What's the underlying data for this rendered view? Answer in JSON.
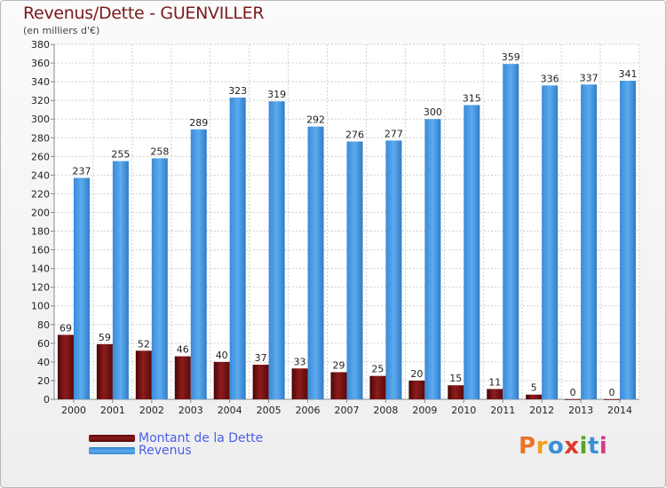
{
  "header": {
    "title": "Revenus/Dette - GUENVILLER",
    "subtitle": "(en milliers d'€)"
  },
  "brand": {
    "text": "Proxiti",
    "colors": [
      "#e8742a",
      "#f0a020",
      "#3c8fd6",
      "#e03a2c",
      "#5aa02c",
      "#3c8fd6",
      "#d23a8c"
    ]
  },
  "chart_data": {
    "type": "bar",
    "categories": [
      "2000",
      "2001",
      "2002",
      "2003",
      "2004",
      "2005",
      "2006",
      "2007",
      "2008",
      "2009",
      "2010",
      "2011",
      "2012",
      "2013",
      "2014"
    ],
    "series": [
      {
        "name": "Montant de la Dette",
        "color": "#7a1010",
        "values": [
          69,
          59,
          52,
          46,
          40,
          37,
          33,
          29,
          25,
          20,
          15,
          11,
          5,
          0,
          0
        ]
      },
      {
        "name": "Revenus",
        "color": "#3d95e0",
        "values": [
          237,
          255,
          258,
          289,
          323,
          319,
          292,
          276,
          277,
          300,
          315,
          359,
          336,
          337,
          341
        ]
      }
    ],
    "ylim": [
      0,
      380
    ],
    "yticks": [
      0,
      20,
      40,
      60,
      80,
      100,
      120,
      140,
      160,
      180,
      200,
      220,
      240,
      260,
      280,
      300,
      320,
      340,
      360,
      380
    ],
    "grid": true,
    "legend_position": "bottom-left"
  }
}
